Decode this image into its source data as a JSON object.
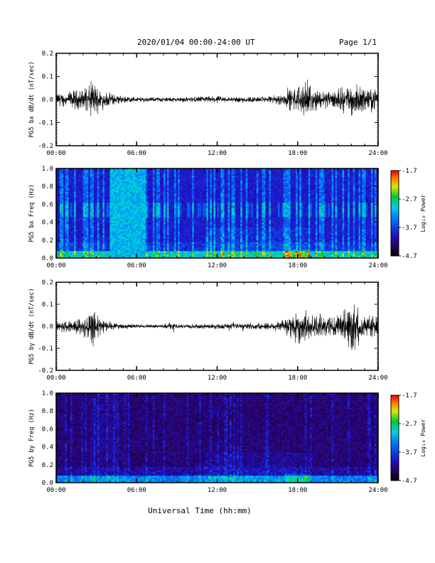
{
  "header": {
    "title": "2020/01/04  00:00-24:00 UT",
    "page": "Page 1/1"
  },
  "footer": {
    "xlabel": "Universal Time (hh:mm)"
  },
  "chart_data": [
    {
      "type": "line",
      "ylabel": "PG5 bx dB/dt (nT/sec)",
      "xlim": [
        0,
        24
      ],
      "ylim": [
        -0.2,
        0.2
      ],
      "x_ticks": [
        "00:00",
        "06:00",
        "12:00",
        "18:00",
        "24:00"
      ],
      "y_ticks": [
        "-0.2",
        "-0.1",
        "0.0",
        "0.1",
        "0.2"
      ],
      "series": [
        {
          "x": [
            0,
            0.5,
            1,
            1.5,
            2,
            2.5,
            2.7,
            3,
            3.5,
            4,
            5,
            6,
            7,
            8,
            9,
            10,
            11,
            12,
            13,
            14,
            15,
            16,
            17,
            17.5,
            18,
            18.5,
            19,
            20,
            21,
            21.5,
            22,
            22.5,
            23,
            24
          ],
          "amplitude": [
            0.03,
            0.03,
            0.035,
            0.04,
            0.045,
            0.06,
            0.09,
            0.06,
            0.04,
            0.03,
            0.015,
            0.012,
            0.01,
            0.01,
            0.01,
            0.012,
            0.015,
            0.015,
            0.012,
            0.015,
            0.012,
            0.015,
            0.03,
            0.05,
            0.06,
            0.07,
            0.05,
            0.04,
            0.04,
            0.06,
            0.07,
            0.06,
            0.05,
            0.04
          ]
        }
      ]
    },
    {
      "type": "heatmap",
      "ylabel": "PG5 bx Freq (Hz)",
      "xlim": [
        0,
        24
      ],
      "ylim": [
        0,
        1
      ],
      "x_ticks": [
        "00:00",
        "06:00",
        "12:00",
        "18:00",
        "24:00"
      ],
      "y_ticks": [
        "0.0",
        "0.2",
        "0.4",
        "0.6",
        "0.8",
        "1.0"
      ],
      "colorbar": {
        "label": "Log₁₀ Power",
        "ticks": [
          "-1.7",
          "-2.7",
          "-3.7",
          "-4.7"
        ],
        "range": [
          -4.7,
          -1.7
        ]
      },
      "bright_block_hours": [
        4.0,
        6.7
      ]
    },
    {
      "type": "line",
      "ylabel": "PG5 by dB/dt (nT/sec)",
      "xlim": [
        0,
        24
      ],
      "ylim": [
        -0.2,
        0.2
      ],
      "x_ticks": [
        "00:00",
        "06:00",
        "12:00",
        "18:00",
        "24:00"
      ],
      "y_ticks": [
        "-0.2",
        "-0.1",
        "0.0",
        "0.1",
        "0.2"
      ],
      "series": [
        {
          "x": [
            0,
            0.5,
            1,
            1.5,
            2,
            2.5,
            2.7,
            3,
            3.5,
            4,
            5,
            6,
            7,
            8,
            8.5,
            9,
            10,
            11,
            12,
            13,
            14,
            15,
            16,
            17,
            17.5,
            18,
            18.5,
            19,
            20,
            21,
            21.5,
            22,
            22.5,
            23,
            24
          ],
          "amplitude": [
            0.025,
            0.03,
            0.03,
            0.035,
            0.04,
            0.07,
            0.11,
            0.06,
            0.03,
            0.02,
            0.01,
            0.008,
            0.008,
            0.008,
            0.02,
            0.008,
            0.01,
            0.012,
            0.012,
            0.012,
            0.015,
            0.015,
            0.02,
            0.035,
            0.06,
            0.1,
            0.07,
            0.05,
            0.05,
            0.05,
            0.08,
            0.12,
            0.09,
            0.06,
            0.04
          ]
        }
      ]
    },
    {
      "type": "heatmap",
      "ylabel": "PG5 by Freq (Hz)",
      "xlim": [
        0,
        24
      ],
      "ylim": [
        0,
        1
      ],
      "x_ticks": [
        "00:00",
        "06:00",
        "12:00",
        "18:00",
        "24:00"
      ],
      "y_ticks": [
        "0.0",
        "0.2",
        "0.4",
        "0.6",
        "0.8",
        "1.0"
      ],
      "colorbar": {
        "label": "Log₁₀ Power",
        "ticks": [
          "-1.7",
          "-2.7",
          "-3.7",
          "-4.7"
        ],
        "range": [
          -4.7,
          -1.7
        ]
      },
      "bright_block_hours": null
    }
  ]
}
